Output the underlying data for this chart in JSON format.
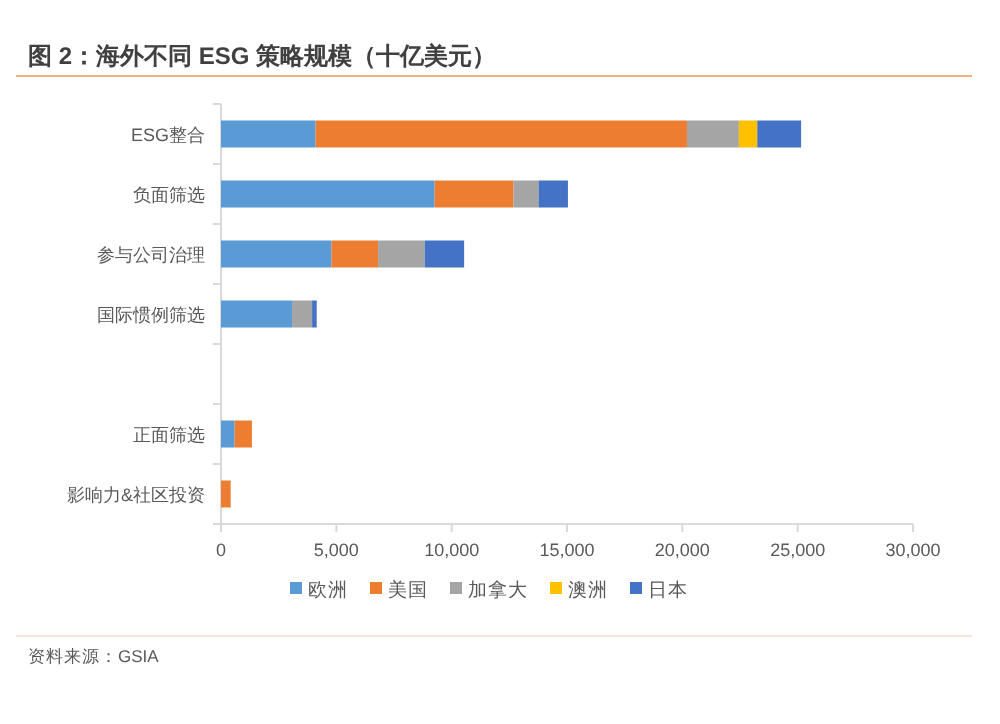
{
  "chart_data": {
    "type": "bar",
    "orientation": "horizontal",
    "stacked": true,
    "title": "图 2：海外不同 ESG 策略规模（十亿美元）",
    "categories": [
      "ESG整合",
      "负面筛选",
      "参与公司治理",
      "国际惯例筛选",
      null,
      "正面筛选",
      "影响力&社区投资"
    ],
    "series": [
      {
        "name": "欧洲",
        "color": "#5b9bd5",
        "values": [
          4100,
          9260,
          4790,
          3080,
          null,
          590,
          0
        ]
      },
      {
        "name": "美国",
        "color": "#ed7d31",
        "values": [
          16100,
          3420,
          2020,
          0,
          null,
          750,
          420
        ]
      },
      {
        "name": "加拿大",
        "color": "#a5a5a5",
        "values": [
          2250,
          1090,
          2020,
          870,
          null,
          0,
          0
        ]
      },
      {
        "name": "澳洲",
        "color": "#ffc000",
        "values": [
          800,
          0,
          0,
          0,
          null,
          0,
          0
        ]
      },
      {
        "name": "日本",
        "color": "#4472c4",
        "values": [
          1900,
          1270,
          1710,
          200,
          null,
          0,
          0
        ]
      }
    ],
    "xlim": [
      0,
      30000
    ],
    "xticks": [
      {
        "value": 0,
        "label": "0"
      },
      {
        "value": 5000,
        "label": "5,000"
      },
      {
        "value": 10000,
        "label": "10,000"
      },
      {
        "value": 15000,
        "label": "15,000"
      },
      {
        "value": 20000,
        "label": "20,000"
      },
      {
        "value": 25000,
        "label": "25,000"
      },
      {
        "value": 30000,
        "label": "30,000"
      }
    ],
    "legend": "bottom",
    "annotations": [
      "资料来源：GSIA"
    ]
  }
}
